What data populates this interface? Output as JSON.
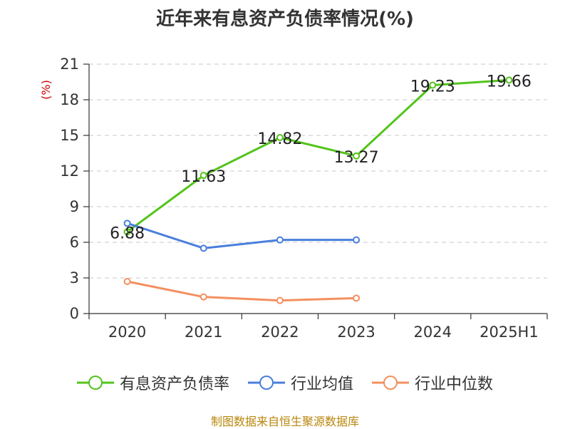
{
  "chart_data": {
    "type": "line",
    "title": "近年来有息资产负债率情况(%)",
    "ylabel": "(%)",
    "xlabel": "",
    "categories": [
      "2020",
      "2021",
      "2022",
      "2023",
      "2024",
      "2025H1"
    ],
    "ylim": [
      0,
      21
    ],
    "yticks": [
      0,
      3,
      6,
      9,
      12,
      15,
      18,
      21
    ],
    "grid": true,
    "legend_position": "bottom",
    "series": [
      {
        "name": "有息资产负债率",
        "color": "#52c41a",
        "values": [
          6.88,
          11.63,
          14.82,
          13.27,
          19.23,
          19.66
        ],
        "labels": [
          "6.88",
          "11.63",
          "14.82",
          "13.27",
          "19.23",
          "19.66"
        ]
      },
      {
        "name": "行业均值",
        "color": "#4a7fdc",
        "values": [
          7.6,
          5.5,
          6.2,
          6.2,
          null,
          null
        ]
      },
      {
        "name": "行业中位数",
        "color": "#f39060",
        "values": [
          2.7,
          1.4,
          1.1,
          1.3,
          null,
          null
        ]
      }
    ]
  },
  "footer": {
    "source": "制图数据来自恒生聚源数据库"
  }
}
